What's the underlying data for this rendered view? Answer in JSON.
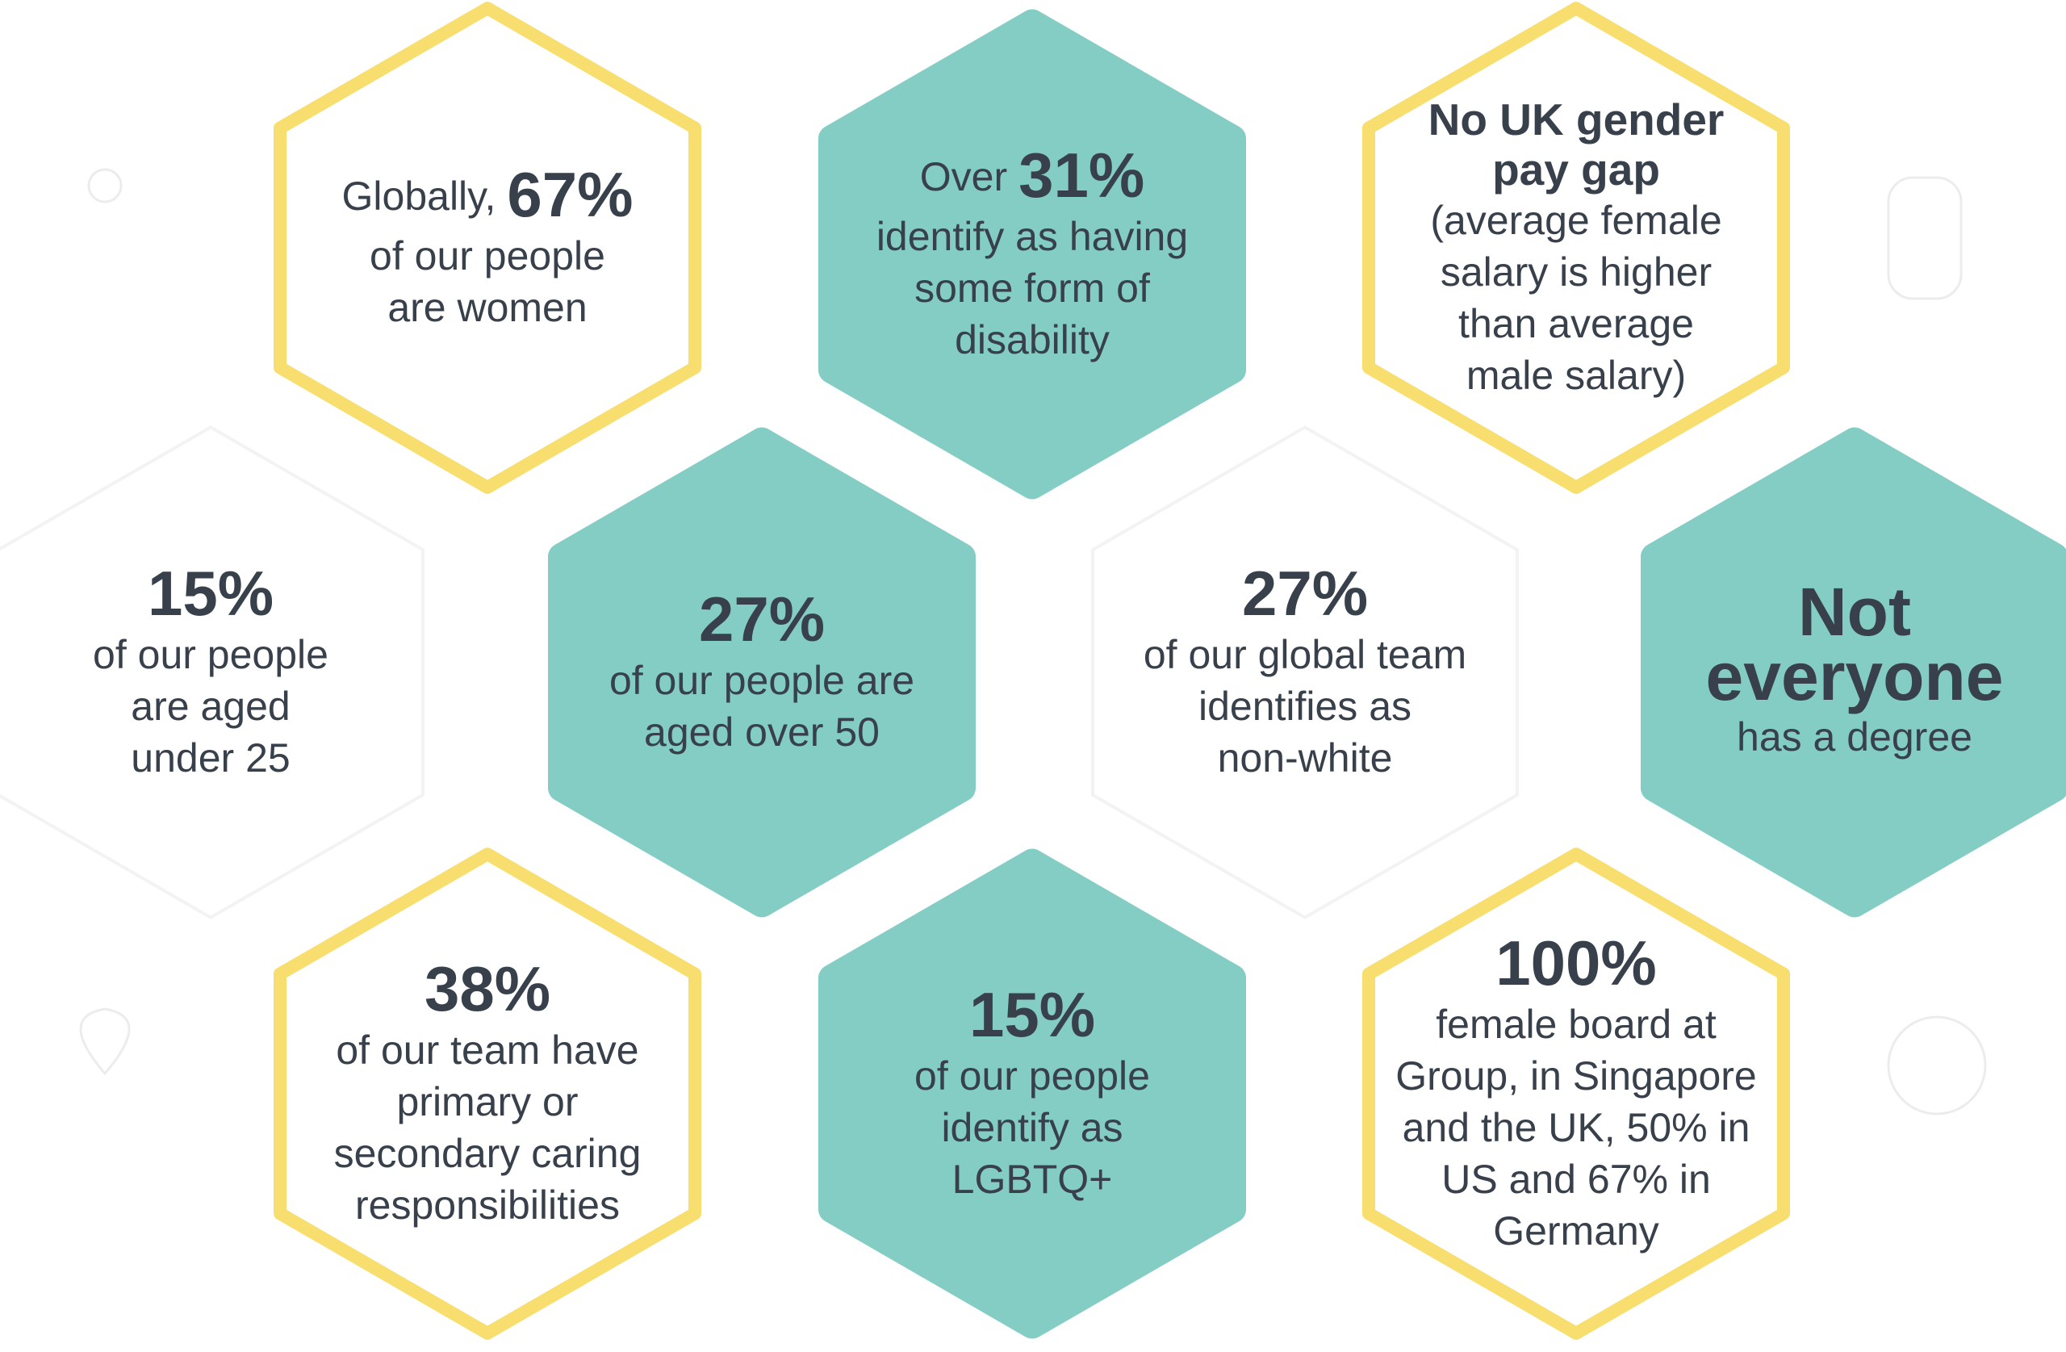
{
  "hexagons": [
    {
      "style": "outline",
      "lines": [
        [
          {
            "text": "Globally,"
          },
          {
            "text": "67%",
            "size": "big"
          }
        ],
        [
          {
            "text": "of our people"
          }
        ],
        [
          {
            "text": "are women"
          }
        ]
      ]
    },
    {
      "style": "teal",
      "lines": [
        [
          {
            "text": "Over"
          },
          {
            "text": "31%",
            "size": "big"
          }
        ],
        [
          {
            "text": "identify as having"
          }
        ],
        [
          {
            "text": "some form of"
          }
        ],
        [
          {
            "text": "disability"
          }
        ]
      ]
    },
    {
      "style": "outline",
      "lines": [
        [
          {
            "text": "No UK gender",
            "size": "bold"
          }
        ],
        [
          {
            "text": "pay gap",
            "size": "bold"
          }
        ],
        [
          {
            "text": "(average female"
          }
        ],
        [
          {
            "text": "salary is higher"
          }
        ],
        [
          {
            "text": "than average"
          }
        ],
        [
          {
            "text": "male salary)"
          }
        ]
      ]
    },
    {
      "style": "white",
      "lines": [
        [
          {
            "text": "15%",
            "size": "big"
          }
        ],
        [
          {
            "text": "of our people"
          }
        ],
        [
          {
            "text": "are aged"
          }
        ],
        [
          {
            "text": "under 25"
          }
        ]
      ]
    },
    {
      "style": "teal",
      "lines": [
        [
          {
            "text": "27%",
            "size": "big"
          }
        ],
        [
          {
            "text": "of our people are"
          }
        ],
        [
          {
            "text": "aged over 50"
          }
        ]
      ]
    },
    {
      "style": "white",
      "lines": [
        [
          {
            "text": "27%",
            "size": "big"
          }
        ],
        [
          {
            "text": "of our global team"
          }
        ],
        [
          {
            "text": "identifies as"
          }
        ],
        [
          {
            "text": "non-white"
          }
        ]
      ]
    },
    {
      "style": "teal",
      "lines": [
        [
          {
            "text": "Not",
            "size": "huge"
          }
        ],
        [
          {
            "text": "everyone",
            "size": "huge"
          }
        ],
        [
          {
            "text": "has a degree"
          }
        ]
      ]
    },
    {
      "style": "outline",
      "lines": [
        [
          {
            "text": "38%",
            "size": "big"
          }
        ],
        [
          {
            "text": "of our team have"
          }
        ],
        [
          {
            "text": "primary or"
          }
        ],
        [
          {
            "text": "secondary caring"
          }
        ],
        [
          {
            "text": "responsibilities"
          }
        ]
      ]
    },
    {
      "style": "teal",
      "lines": [
        [
          {
            "text": "15%",
            "size": "big"
          }
        ],
        [
          {
            "text": "of our people"
          }
        ],
        [
          {
            "text": "identify as"
          }
        ],
        [
          {
            "text": "LGBTQ+"
          }
        ]
      ]
    },
    {
      "style": "outline",
      "lines": [
        [
          {
            "text": "100%",
            "size": "big"
          }
        ],
        [
          {
            "text": "female board at"
          }
        ],
        [
          {
            "text": "Group, in Singapore"
          }
        ],
        [
          {
            "text": "and the UK, 50% in"
          }
        ],
        [
          {
            "text": "US and 67% in"
          }
        ],
        [
          {
            "text": "Germany"
          }
        ]
      ]
    }
  ]
}
